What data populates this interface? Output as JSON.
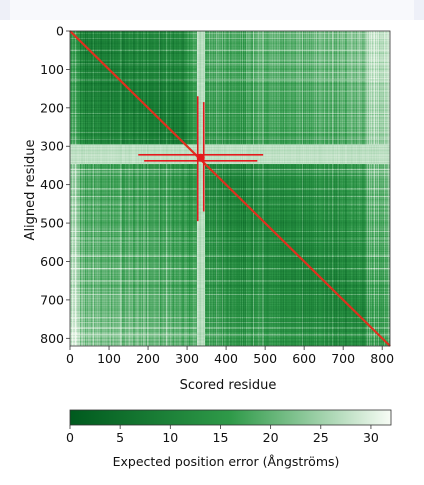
{
  "chart_data": [
    {
      "type": "heatmap",
      "title": "",
      "xlabel": "Scored residue",
      "ylabel": "Aligned residue",
      "xlim": [
        0,
        820
      ],
      "ylim": [
        820,
        0
      ],
      "xticks": [
        0,
        100,
        200,
        300,
        400,
        500,
        600,
        700,
        800
      ],
      "yticks": [
        0,
        100,
        200,
        300,
        400,
        500,
        600,
        700,
        800
      ],
      "n_residues": 820,
      "color_scale": {
        "low": "#005a1e",
        "mid": "#2f9a49",
        "high": "#f7fcf5",
        "vmin": 0,
        "vmax": 32
      },
      "diagonal_color": "#e0301e",
      "features": [
        {
          "description": "low error along the diagonal",
          "value": 0
        },
        {
          "description": "high-error vertical band",
          "x_range": [
            325,
            345
          ],
          "value": 30
        },
        {
          "description": "high-error horizontal band",
          "y_range": [
            295,
            345
          ],
          "value": 30
        },
        {
          "description": "domain 1 block",
          "range": [
            0,
            300
          ],
          "typical_value": 8
        },
        {
          "description": "domain 2 block",
          "range": [
            345,
            820
          ],
          "typical_value": 10
        }
      ],
      "overlay": {
        "type": "crosshair",
        "color": "#e41a1c",
        "center": [
          335,
          330
        ],
        "horizontal_extents": [
          [
            175,
            495
          ],
          [
            190,
            480
          ]
        ],
        "vertical_extents": [
          [
            170,
            495
          ],
          [
            185,
            470
          ]
        ]
      }
    },
    {
      "type": "colorbar",
      "label": "Expected position error (Ångströms)",
      "ticks": [
        0,
        5,
        10,
        15,
        20,
        25,
        30
      ],
      "vmin": 0,
      "vmax": 32,
      "colors": [
        "#005a1e",
        "#2f9a49",
        "#f7fcf5"
      ]
    }
  ]
}
